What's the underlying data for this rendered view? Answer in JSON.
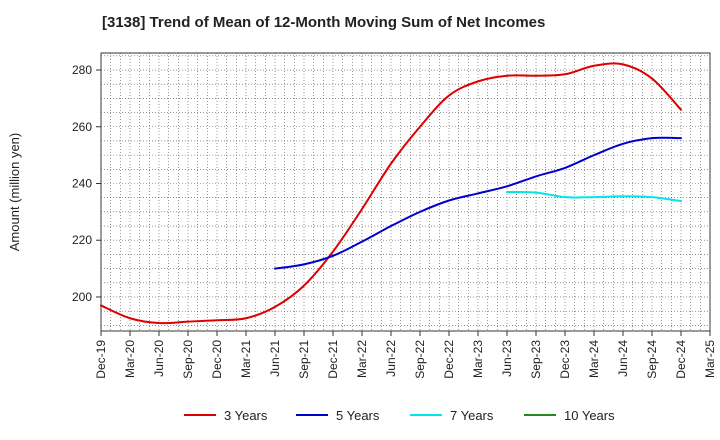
{
  "chart_data": {
    "type": "line",
    "title": "[3138]  Trend of Mean of 12-Month Moving Sum of Net Incomes",
    "xlabel": "",
    "ylabel": "Amount (million yen)",
    "ylim": [
      188,
      286
    ],
    "yticks": [
      200,
      220,
      240,
      260,
      280
    ],
    "x_categories": [
      "Dec-19",
      "Mar-20",
      "Jun-20",
      "Sep-20",
      "Dec-20",
      "Mar-21",
      "Jun-21",
      "Sep-21",
      "Dec-21",
      "Mar-22",
      "Jun-22",
      "Sep-22",
      "Dec-22",
      "Mar-23",
      "Jun-23",
      "Sep-23",
      "Dec-23",
      "Mar-24",
      "Jun-24",
      "Sep-24",
      "Dec-24",
      "Mar-25"
    ],
    "grid": true,
    "legend_position": "bottom",
    "series": [
      {
        "name": "3 Years",
        "color": "#dd0000",
        "points": [
          [
            0,
            197
          ],
          [
            1,
            192.5
          ],
          [
            2,
            190.8
          ],
          [
            3,
            191.3
          ],
          [
            4,
            191.8
          ],
          [
            5,
            192.5
          ],
          [
            6,
            196.5
          ],
          [
            7,
            204
          ],
          [
            8,
            216
          ],
          [
            9,
            231
          ],
          [
            10,
            247
          ],
          [
            11,
            260
          ],
          [
            12,
            271
          ],
          [
            13,
            276
          ],
          [
            14,
            278
          ],
          [
            15,
            278
          ],
          [
            16,
            278.5
          ],
          [
            17,
            281.5
          ],
          [
            18,
            282
          ],
          [
            19,
            277
          ],
          [
            20,
            266
          ]
        ]
      },
      {
        "name": "5 Years",
        "color": "#0000cc",
        "points": [
          [
            6,
            210
          ],
          [
            7,
            211.5
          ],
          [
            8,
            214.5
          ],
          [
            9,
            219.5
          ],
          [
            10,
            225
          ],
          [
            11,
            230
          ],
          [
            12,
            234
          ],
          [
            13,
            236.5
          ],
          [
            14,
            239
          ],
          [
            15,
            242.5
          ],
          [
            16,
            245.5
          ],
          [
            17,
            250
          ],
          [
            18,
            254
          ],
          [
            19,
            256
          ],
          [
            20,
            256
          ]
        ]
      },
      {
        "name": "7 Years",
        "color": "#00e5ee",
        "points": [
          [
            14,
            237
          ],
          [
            15,
            236.8
          ],
          [
            16,
            235.2
          ],
          [
            17,
            235.2
          ],
          [
            18,
            235.5
          ],
          [
            19,
            235.2
          ],
          [
            20,
            233.8
          ]
        ]
      },
      {
        "name": "10 Years",
        "color": "#228b22",
        "points": []
      }
    ]
  }
}
